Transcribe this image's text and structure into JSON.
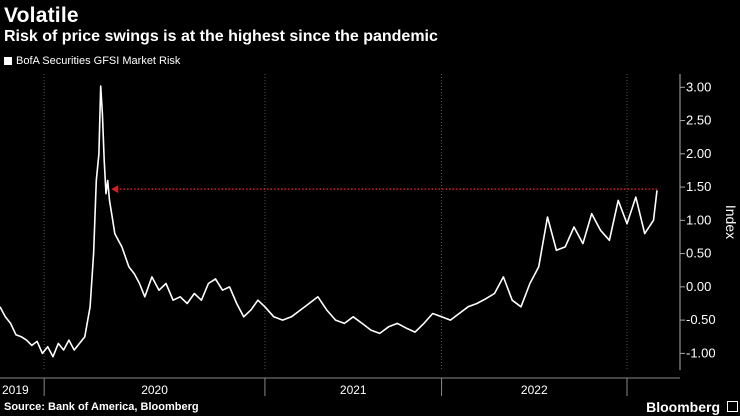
{
  "header": {
    "title": "Volatile",
    "subtitle": "Risk of price swings is at the highest since the pandemic"
  },
  "legend": {
    "label": "BofA Securities GFSI Market Risk"
  },
  "footer": {
    "source": "Source: Bank of America, Bloomberg",
    "brand": "Bloomberg"
  },
  "colors": {
    "line": "#ffffff",
    "annotation": "#d0202a",
    "grid": "#555555",
    "background": "#000000"
  },
  "chart_data": {
    "type": "line",
    "ylabel": "Index",
    "ylim": [
      -1.25,
      3.2
    ],
    "xlim": [
      2019.0,
      2022.85
    ],
    "y_ticks": [
      "3.00",
      "2.50",
      "2.00",
      "1.50",
      "1.00",
      "0.50",
      "0.00",
      "-0.50",
      "-1.00"
    ],
    "y_tick_values": [
      3.0,
      2.5,
      2.0,
      1.5,
      1.0,
      0.5,
      0.0,
      -0.5,
      -1.0
    ],
    "x_ticks": [
      "2019",
      "2020",
      "2021",
      "2022"
    ],
    "x_tick_centers": [
      2019.0,
      2020.0,
      2021.0,
      2022.0
    ],
    "x_tick_dividers": [
      2019.25,
      2020.5,
      2021.5,
      2022.55
    ],
    "grid": "vertical dotted",
    "annotation": {
      "type": "dotted-arrow",
      "from_x": 2022.72,
      "to_x": 2019.63,
      "y": 1.47
    },
    "series": [
      {
        "x": [
          2019.0,
          2019.03,
          2019.06,
          2019.09,
          2019.12,
          2019.15,
          2019.18,
          2019.21,
          2019.24,
          2019.27,
          2019.3,
          2019.33,
          2019.36,
          2019.39,
          2019.42,
          2019.45,
          2019.48,
          2019.51,
          2019.53,
          2019.545,
          2019.56,
          2019.57,
          2019.58,
          2019.59,
          2019.6,
          2019.61,
          2019.62,
          2019.635,
          2019.65,
          2019.67,
          2019.69,
          2019.71,
          2019.73,
          2019.76,
          2019.79,
          2019.82,
          2019.86,
          2019.9,
          2019.94,
          2019.98,
          2020.02,
          2020.06,
          2020.1,
          2020.14,
          2020.18,
          2020.22,
          2020.26,
          2020.3,
          2020.34,
          2020.38,
          2020.42,
          2020.46,
          2020.5,
          2020.55,
          2020.6,
          2020.65,
          2020.7,
          2020.75,
          2020.8,
          2020.85,
          2020.9,
          2020.95,
          2021.0,
          2021.05,
          2021.1,
          2021.15,
          2021.2,
          2021.25,
          2021.3,
          2021.35,
          2021.4,
          2021.45,
          2021.5,
          2021.55,
          2021.6,
          2021.65,
          2021.7,
          2021.75,
          2021.8,
          2021.85,
          2021.9,
          2021.95,
          2022.0,
          2022.05,
          2022.1,
          2022.15,
          2022.2,
          2022.25,
          2022.3,
          2022.35,
          2022.4,
          2022.45,
          2022.5,
          2022.55,
          2022.6,
          2022.65,
          2022.7,
          2022.72
        ],
        "values": [
          -0.3,
          -0.45,
          -0.55,
          -0.72,
          -0.75,
          -0.8,
          -0.88,
          -0.82,
          -1.0,
          -0.9,
          -1.05,
          -0.85,
          -0.95,
          -0.8,
          -0.95,
          -0.85,
          -0.75,
          -0.3,
          0.5,
          1.6,
          2.0,
          3.02,
          2.6,
          1.9,
          1.4,
          1.6,
          1.3,
          1.05,
          0.8,
          0.7,
          0.6,
          0.45,
          0.3,
          0.2,
          0.05,
          -0.15,
          0.15,
          -0.05,
          0.05,
          -0.2,
          -0.15,
          -0.25,
          -0.1,
          -0.2,
          0.05,
          0.12,
          -0.05,
          0.0,
          -0.25,
          -0.45,
          -0.35,
          -0.2,
          -0.3,
          -0.45,
          -0.5,
          -0.45,
          -0.35,
          -0.25,
          -0.15,
          -0.35,
          -0.5,
          -0.55,
          -0.45,
          -0.55,
          -0.65,
          -0.7,
          -0.6,
          -0.55,
          -0.62,
          -0.68,
          -0.55,
          -0.4,
          -0.45,
          -0.5,
          -0.4,
          -0.3,
          -0.25,
          -0.18,
          -0.1,
          0.15,
          -0.2,
          -0.3,
          0.05,
          0.3,
          1.05,
          0.55,
          0.6,
          0.9,
          0.65,
          1.1,
          0.85,
          0.7,
          1.3,
          0.95,
          1.35,
          0.8,
          1.0,
          1.45
        ]
      }
    ]
  }
}
